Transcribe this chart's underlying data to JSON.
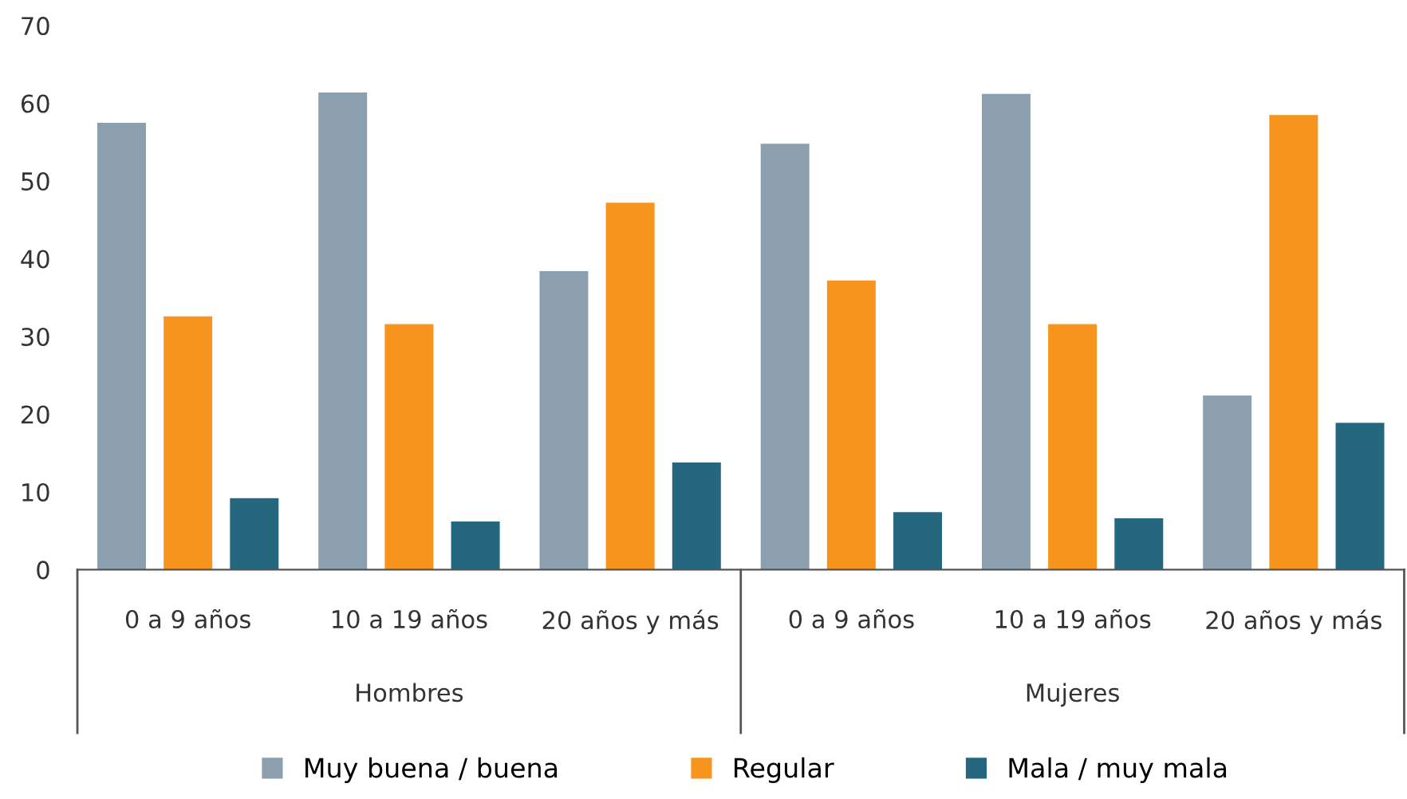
{
  "chart_data": {
    "type": "bar",
    "categories": [
      "0 a 9 años",
      "10 a 19 años",
      "20 años y más",
      "0 a 9 años",
      "10 a 19 años",
      "20 años y más"
    ],
    "annotations": [
      "Hombres",
      "Mujeres"
    ],
    "series": [
      {
        "name": "Muy buena / buena",
        "color": "#8c9fae",
        "values": [
          57.5,
          61.4,
          38.4,
          54.8,
          61.2,
          22.4
        ]
      },
      {
        "name": "Regular",
        "color": "#f7941d",
        "values": [
          32.6,
          31.6,
          47.2,
          37.2,
          31.6,
          58.5
        ]
      },
      {
        "name": "Mala / muy mala",
        "color": "#24677e",
        "values": [
          9.2,
          6.2,
          13.8,
          7.4,
          6.6,
          18.9
        ]
      }
    ],
    "ylim": [
      0,
      70
    ],
    "yticks": [
      0,
      10,
      20,
      30,
      40,
      50,
      60,
      70
    ],
    "grid": false,
    "legend": "bottom"
  }
}
